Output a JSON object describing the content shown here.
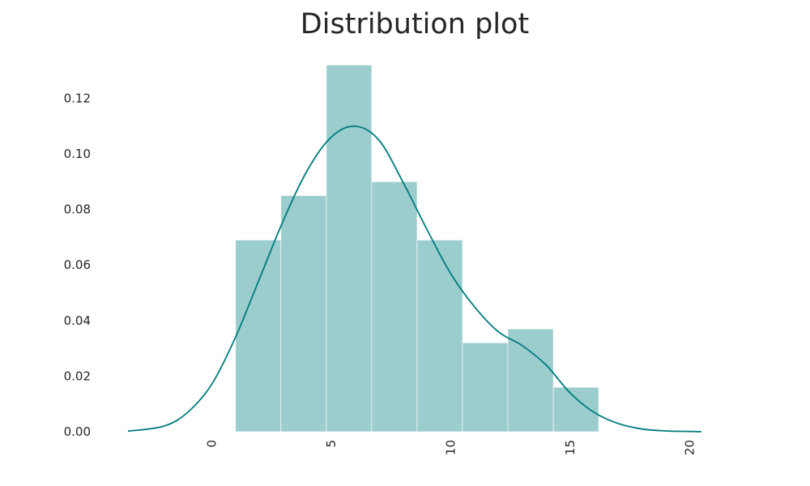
{
  "chart_data": {
    "type": "bar",
    "title": "Distribution plot",
    "xlabel": "",
    "ylabel": "",
    "xlim": [
      -3.5,
      20.5
    ],
    "ylim": [
      0,
      0.135
    ],
    "xticks": [
      "0",
      "5",
      "10",
      "15",
      "20"
    ],
    "yticks": [
      "0.00",
      "0.02",
      "0.04",
      "0.06",
      "0.08",
      "0.10",
      "0.12"
    ],
    "grid": false,
    "histogram": {
      "bin_edges": [
        1.0,
        2.9,
        4.8,
        6.7,
        8.6,
        10.5,
        12.4,
        14.3,
        16.2
      ],
      "values": [
        0.069,
        0.085,
        0.132,
        0.09,
        0.069,
        0.032,
        0.037,
        0.016
      ],
      "color": "#9bcdce"
    },
    "kde": {
      "x": [
        -3.5,
        -2,
        -1,
        0,
        1,
        2,
        3,
        4,
        5,
        6,
        7,
        8,
        9,
        10,
        11,
        12,
        13,
        14,
        15,
        16,
        17,
        18,
        19,
        20,
        20.5
      ],
      "y": [
        0.0002,
        0.002,
        0.007,
        0.017,
        0.034,
        0.055,
        0.076,
        0.094,
        0.106,
        0.11,
        0.105,
        0.09,
        0.073,
        0.057,
        0.045,
        0.036,
        0.031,
        0.024,
        0.014,
        0.007,
        0.003,
        0.001,
        0.0003,
        0.0001,
        0.0
      ],
      "color": "#007b7b"
    }
  }
}
